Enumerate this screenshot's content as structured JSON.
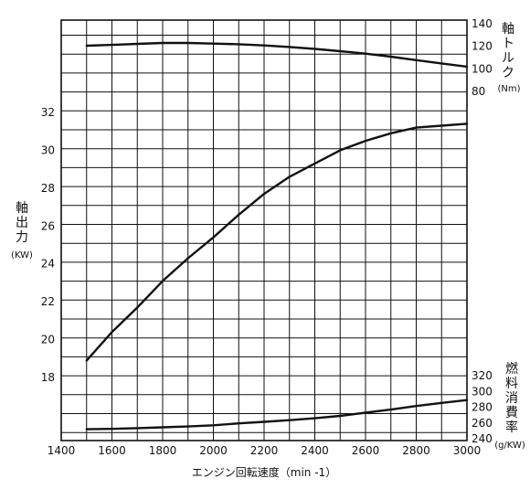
{
  "chart_data": {
    "type": "line",
    "xlabel": "エンジン回転速度（min -1）",
    "xlim": [
      1400,
      3000
    ],
    "x_ticks": [
      1400,
      1600,
      1800,
      2000,
      2200,
      2400,
      2600,
      2800,
      3000
    ],
    "axes": {
      "power": {
        "label": "軸出力",
        "unit": "(KW)",
        "ticks": [
          18,
          20,
          22,
          24,
          26,
          28,
          30,
          32
        ]
      },
      "torque": {
        "label": "軸トルク",
        "unit": "(Nm)",
        "ticks": [
          80,
          100,
          120,
          140
        ]
      },
      "fuel": {
        "label": "燃料消費率",
        "unit": "(g/KW)",
        "ticks": [
          240,
          260,
          280,
          300,
          320
        ]
      }
    },
    "series": [
      {
        "axis": "torque",
        "x": [
          1500,
          1600,
          1700,
          1800,
          1900,
          2000,
          2100,
          2200,
          2300,
          2400,
          2500,
          2600,
          2700,
          2800,
          2900,
          3000
        ],
        "y": [
          120.5,
          121.3,
          122.2,
          123.0,
          123.0,
          122.4,
          121.8,
          120.8,
          119.4,
          117.7,
          115.7,
          113.5,
          110.8,
          107.7,
          104.8,
          102.0
        ]
      },
      {
        "axis": "power",
        "x": [
          1500,
          1600,
          1700,
          1800,
          1900,
          2000,
          2100,
          2200,
          2300,
          2400,
          2500,
          2600,
          2700,
          2800,
          2900,
          3000
        ],
        "y": [
          18.9,
          20.4,
          21.7,
          23.1,
          24.3,
          25.4,
          26.6,
          27.7,
          28.6,
          29.3,
          30.0,
          30.5,
          30.9,
          31.2,
          31.3,
          31.4
        ]
      },
      {
        "axis": "fuel",
        "x": [
          1500,
          1600,
          1700,
          1800,
          1900,
          2000,
          2100,
          2200,
          2300,
          2400,
          2500,
          2600,
          2700,
          2800,
          2900,
          3000
        ],
        "y": [
          252.0,
          252.5,
          253.5,
          254.5,
          255.5,
          257.0,
          259.5,
          261.5,
          263.5,
          266.0,
          269.0,
          273.0,
          277.0,
          281.5,
          285.5,
          289.0
        ]
      }
    ],
    "grid": true
  }
}
